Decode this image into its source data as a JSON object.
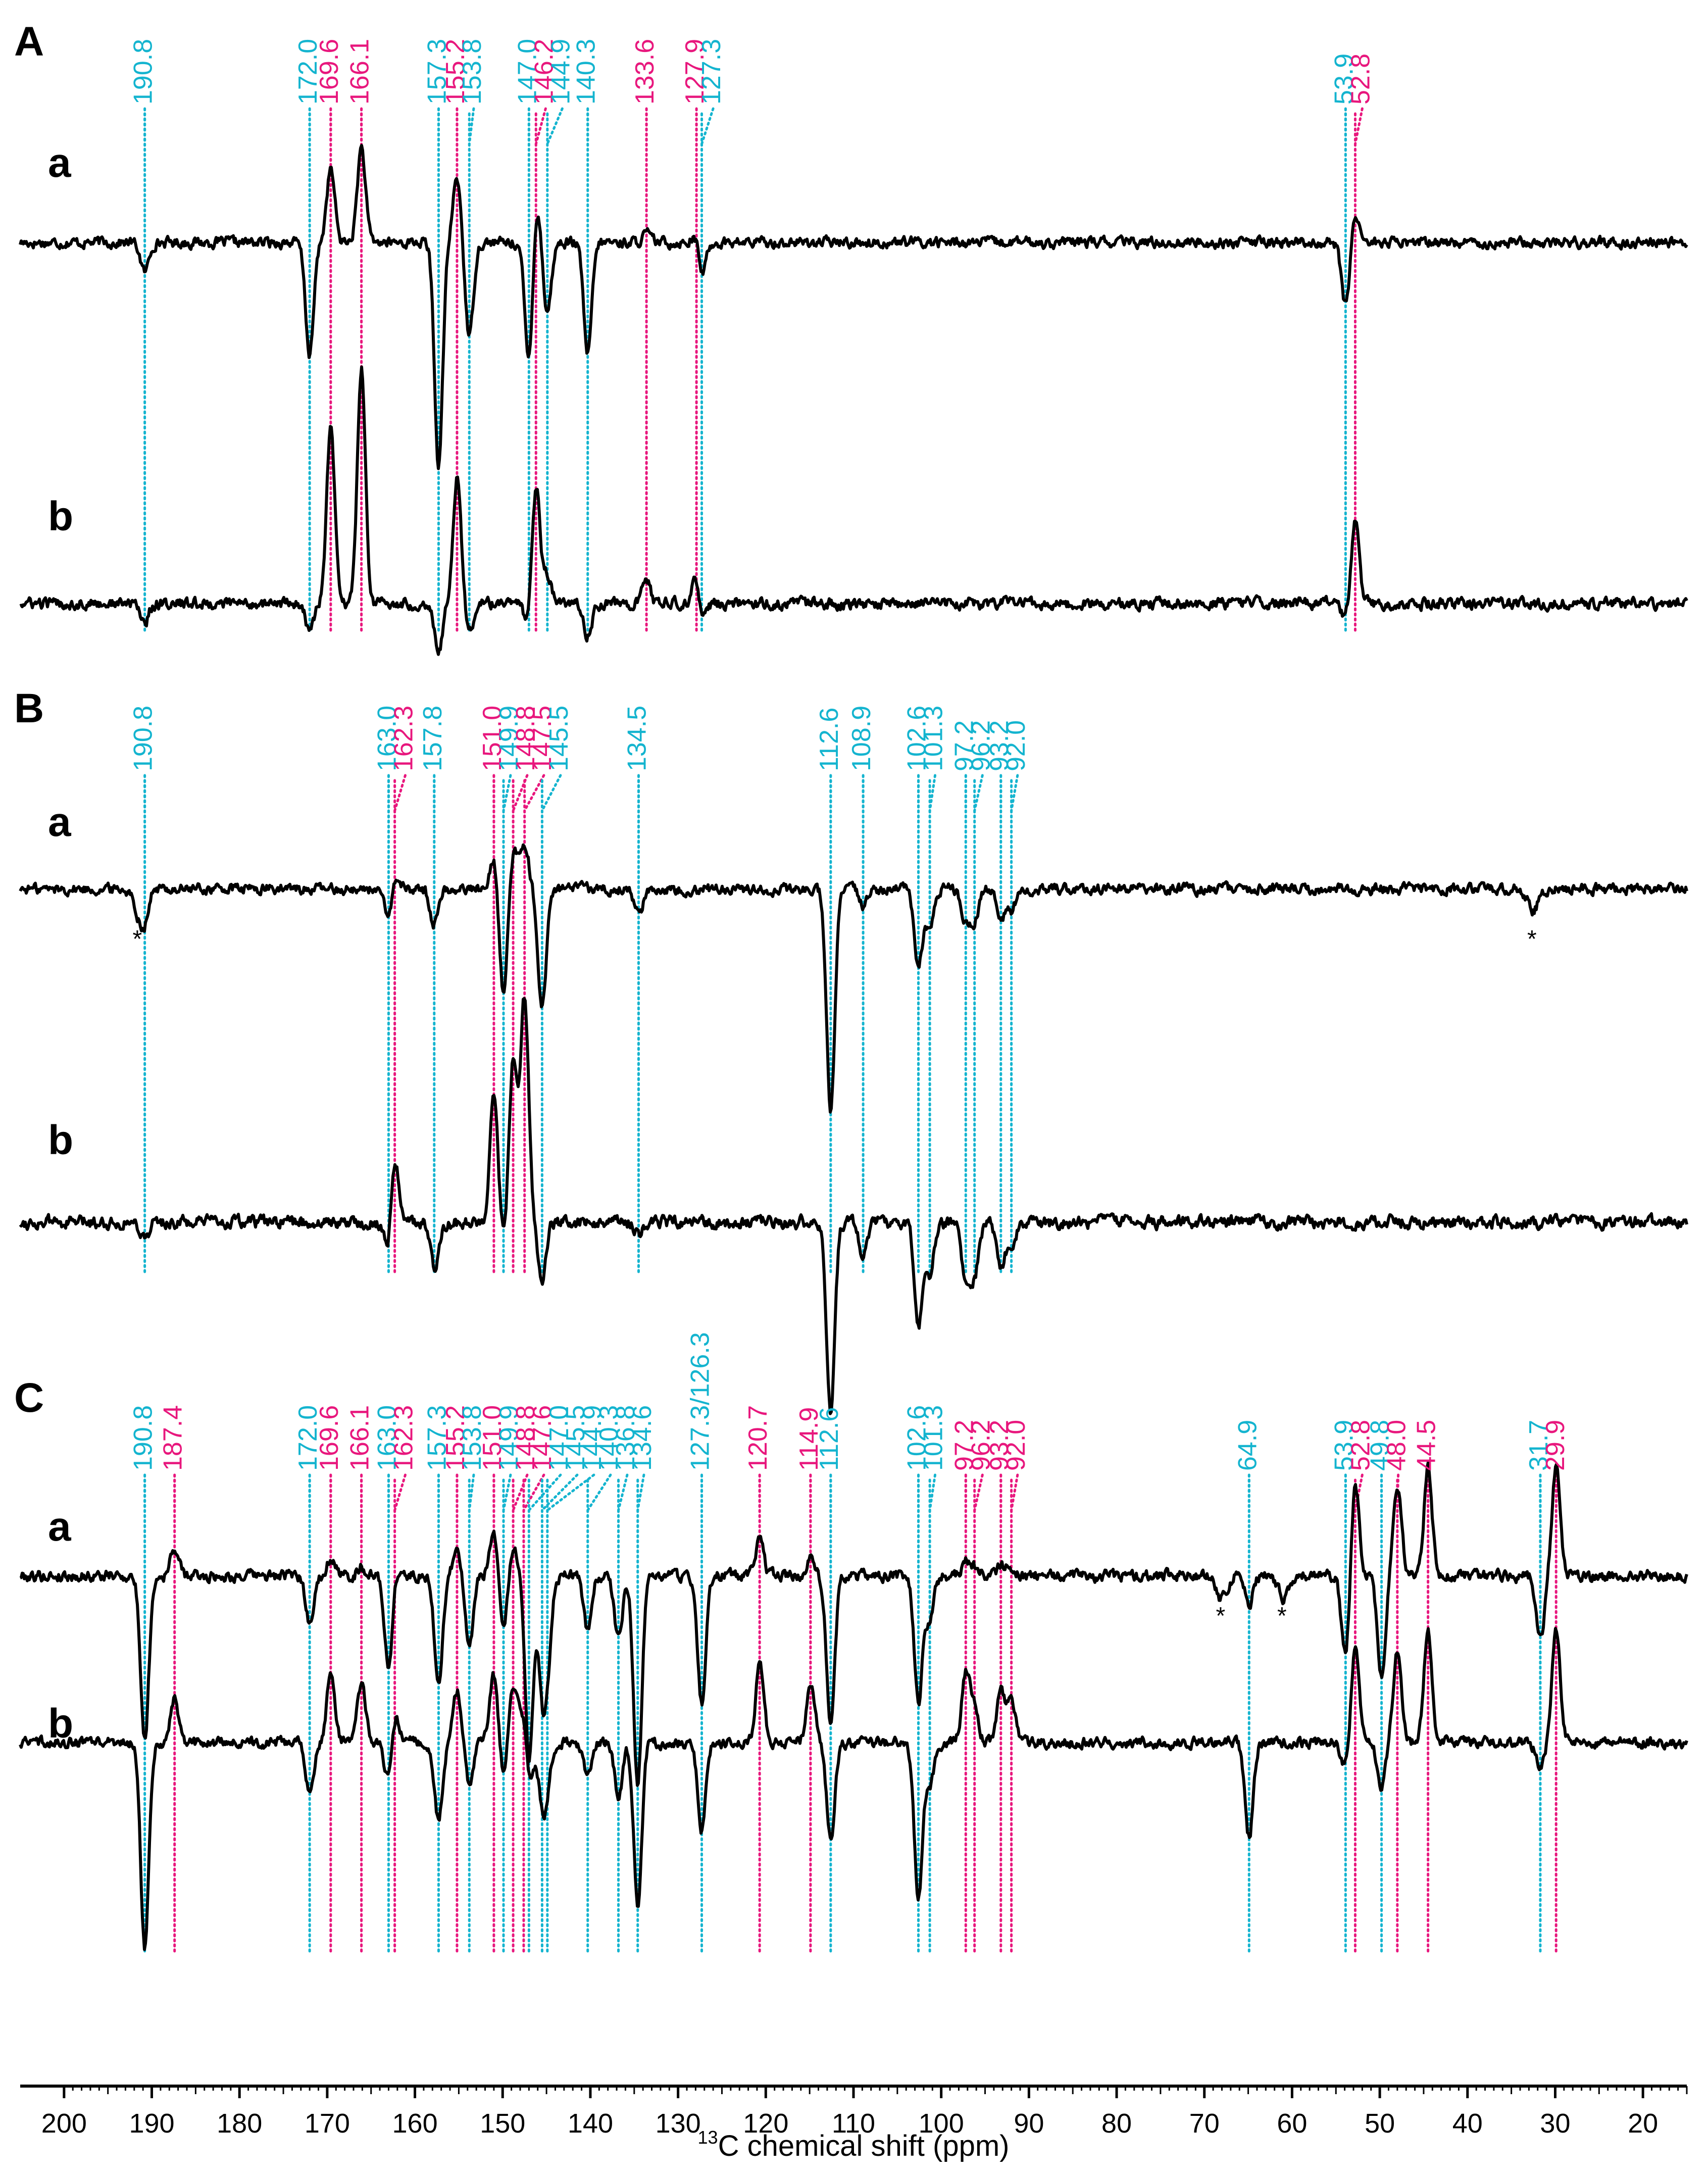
{
  "figure": {
    "panel_labels": [
      "A",
      "B",
      "C"
    ],
    "row_labels": [
      "a",
      "b"
    ],
    "axis_label": "chemical shift (ppm)",
    "axis_label_sup": "13",
    "axis_label_prefix": "C",
    "star": "*"
  },
  "colors": {
    "cyan": "#14b4cf",
    "magenta": "#e8177d",
    "trace": "#000000"
  },
  "chart_data": {
    "type": "line",
    "xlabel": "13C chemical shift (ppm)",
    "xlim": [
      205,
      15
    ],
    "x_reversed": true,
    "xticks": [
      200,
      190,
      180,
      170,
      160,
      150,
      140,
      130,
      120,
      110,
      100,
      90,
      80,
      70,
      60,
      50,
      40,
      30,
      20
    ],
    "panels": [
      {
        "name": "A",
        "peaks": [
          {
            "ppm": 190.8,
            "label": "190.8",
            "color": "cyan",
            "a": -0.35,
            "b": -0.2
          },
          {
            "ppm": 172.0,
            "label": "172.0",
            "color": "cyan",
            "a": -1.3,
            "b": -0.3
          },
          {
            "ppm": 169.6,
            "label": "169.6",
            "color": "magenta",
            "a": 0.85,
            "b": 1.9
          },
          {
            "ppm": 166.1,
            "label": "166.1",
            "color": "magenta",
            "a": 1.1,
            "b": 2.6
          },
          {
            "ppm": 157.3,
            "label": "157.3",
            "color": "cyan",
            "a": -2.6,
            "b": -0.5
          },
          {
            "ppm": 155.2,
            "label": "155.2",
            "color": "magenta",
            "a": 0.75,
            "b": 1.4
          },
          {
            "ppm": 153.8,
            "label": "153.8",
            "color": "cyan",
            "a": -1.1,
            "b": -0.3
          },
          {
            "ppm": 147.0,
            "label": "147.0",
            "color": "cyan",
            "a": -1.45,
            "b": -0.3
          },
          {
            "ppm": 146.2,
            "label": "146.2",
            "color": "magenta",
            "a": 0.55,
            "b": 1.3
          },
          {
            "ppm": 144.9,
            "label": "144.9",
            "color": "cyan",
            "a": -0.8,
            "b": 0.3
          },
          {
            "ppm": 140.3,
            "label": "140.3",
            "color": "cyan",
            "a": -1.3,
            "b": -0.35
          },
          {
            "ppm": 133.6,
            "label": "133.6",
            "color": "magenta",
            "a": 0.1,
            "b": 0.25
          },
          {
            "ppm": 127.9,
            "label": "127.9",
            "color": "magenta",
            "a": 0.15,
            "b": 0.3
          },
          {
            "ppm": 127.3,
            "label": "127.3",
            "color": "cyan",
            "a": -0.4,
            "b": -0.2
          },
          {
            "ppm": 53.9,
            "label": "53.9",
            "color": "cyan",
            "a": -0.75,
            "b": -0.15
          },
          {
            "ppm": 52.8,
            "label": "52.8",
            "color": "magenta",
            "a": 0.35,
            "b": 0.9
          }
        ]
      },
      {
        "name": "B",
        "peaks": [
          {
            "ppm": 190.8,
            "label": "190.8",
            "color": "cyan",
            "a": -0.3,
            "b": -0.15
          },
          {
            "ppm": 163.0,
            "label": "163.0",
            "color": "cyan",
            "a": -0.4,
            "b": -0.35
          },
          {
            "ppm": 162.3,
            "label": "162.3",
            "color": "magenta",
            "a": 0.2,
            "b": 0.7
          },
          {
            "ppm": 157.8,
            "label": "157.8",
            "color": "cyan",
            "a": -0.4,
            "b": -0.45
          },
          {
            "ppm": 151.0,
            "label": "151.0",
            "color": "magenta",
            "a": 0.4,
            "b": 1.3
          },
          {
            "ppm": 149.9,
            "label": "149.9",
            "color": "cyan",
            "a": -1.25,
            "b": -0.2
          },
          {
            "ppm": 148.8,
            "label": "148.8",
            "color": "magenta",
            "a": 0.45,
            "b": 1.6
          },
          {
            "ppm": 147.5,
            "label": "147.5",
            "color": "magenta",
            "a": 0.55,
            "b": 2.2
          },
          {
            "ppm": 145.5,
            "label": "145.5",
            "color": "cyan",
            "a": -1.4,
            "b": -0.55
          },
          {
            "ppm": 134.5,
            "label": "134.5",
            "color": "cyan",
            "a": -0.3,
            "b": -0.1
          },
          {
            "ppm": 112.6,
            "label": "112.6",
            "color": "cyan",
            "a": -2.6,
            "b": -1.9
          },
          {
            "ppm": 108.9,
            "label": "108.9",
            "color": "cyan",
            "a": -0.2,
            "b": -0.3
          },
          {
            "ppm": 102.6,
            "label": "102.6",
            "color": "cyan",
            "a": -0.9,
            "b": -1.0
          },
          {
            "ppm": 101.3,
            "label": "101.3",
            "color": "cyan",
            "a": -0.5,
            "b": -0.5
          },
          {
            "ppm": 97.2,
            "label": "97.2",
            "color": "cyan",
            "a": -0.4,
            "b": -0.6
          },
          {
            "ppm": 96.2,
            "label": "96.2",
            "color": "cyan",
            "a": -0.35,
            "b": -0.5
          },
          {
            "ppm": 93.2,
            "label": "93.2",
            "color": "cyan",
            "a": -0.35,
            "b": -0.4
          },
          {
            "ppm": 92.0,
            "label": "92.0",
            "color": "cyan",
            "a": -0.25,
            "b": -0.3
          }
        ]
      },
      {
        "name": "C",
        "peaks": [
          {
            "ppm": 190.8,
            "label": "190.8",
            "color": "cyan",
            "a": -1.8,
            "b": -2.4
          },
          {
            "ppm": 187.4,
            "label": "187.4",
            "color": "magenta",
            "a": 0.3,
            "b": 0.5
          },
          {
            "ppm": 172.0,
            "label": "172.0",
            "color": "cyan",
            "a": -0.5,
            "b": -0.6
          },
          {
            "ppm": 169.6,
            "label": "169.6",
            "color": "magenta",
            "a": 0.2,
            "b": 0.8
          },
          {
            "ppm": 166.1,
            "label": "166.1",
            "color": "magenta",
            "a": 0.1,
            "b": 0.7
          },
          {
            "ppm": 163.0,
            "label": "163.0",
            "color": "cyan",
            "a": -1.0,
            "b": -0.5
          },
          {
            "ppm": 162.3,
            "label": "162.3",
            "color": "magenta",
            "a": 0.1,
            "b": 0.4
          },
          {
            "ppm": 157.3,
            "label": "157.3",
            "color": "cyan",
            "a": -1.2,
            "b": -0.9
          },
          {
            "ppm": 155.2,
            "label": "155.2",
            "color": "magenta",
            "a": 0.3,
            "b": 0.6
          },
          {
            "ppm": 153.8,
            "label": "153.8",
            "color": "cyan",
            "a": -0.8,
            "b": -0.5
          },
          {
            "ppm": 151.0,
            "label": "151.0",
            "color": "magenta",
            "a": 0.5,
            "b": 0.8
          },
          {
            "ppm": 149.9,
            "label": "149.9",
            "color": "cyan",
            "a": -0.6,
            "b": -0.4
          },
          {
            "ppm": 148.8,
            "label": "148.8",
            "color": "magenta",
            "a": 0.3,
            "b": 0.7
          },
          {
            "ppm": 147.6,
            "label": "147.6",
            "color": "magenta",
            "a": 0.2,
            "b": 0.5
          },
          {
            "ppm": 147.0,
            "label": "147.0",
            "color": "cyan",
            "a": -2.1,
            "b": -0.6
          },
          {
            "ppm": 145.5,
            "label": "145.5",
            "color": "cyan",
            "a": -1.1,
            "b": -0.6
          },
          {
            "ppm": 144.9,
            "label": "144.9",
            "color": "cyan",
            "a": -0.8,
            "b": -0.4
          },
          {
            "ppm": 140.3,
            "label": "140.3",
            "color": "cyan",
            "a": -0.6,
            "b": -0.4
          },
          {
            "ppm": 136.8,
            "label": "136.8",
            "color": "cyan",
            "a": -0.7,
            "b": -0.6
          },
          {
            "ppm": 134.6,
            "label": "134.6",
            "color": "cyan",
            "a": -2.3,
            "b": -1.9
          },
          {
            "ppm": 127.3,
            "label": "127.3/126.3",
            "color": "cyan",
            "a": -1.4,
            "b": -1.0
          },
          {
            "ppm": 120.7,
            "label": "120.7",
            "color": "magenta",
            "a": 0.4,
            "b": 0.9
          },
          {
            "ppm": 114.9,
            "label": "114.9",
            "color": "magenta",
            "a": 0.2,
            "b": 0.7
          },
          {
            "ppm": 112.6,
            "label": "112.6",
            "color": "cyan",
            "a": -1.6,
            "b": -1.1
          },
          {
            "ppm": 102.6,
            "label": "102.6",
            "color": "cyan",
            "a": -1.4,
            "b": -1.8
          },
          {
            "ppm": 101.3,
            "label": "101.3",
            "color": "cyan",
            "a": -0.5,
            "b": -0.5
          },
          {
            "ppm": 97.2,
            "label": "97.2",
            "color": "magenta",
            "a": 0.15,
            "b": 0.8
          },
          {
            "ppm": 96.2,
            "label": "96.2",
            "color": "magenta",
            "a": 0.1,
            "b": 0.4
          },
          {
            "ppm": 93.2,
            "label": "93.2",
            "color": "magenta",
            "a": 0.1,
            "b": 0.6
          },
          {
            "ppm": 92.0,
            "label": "92.0",
            "color": "magenta",
            "a": 0.1,
            "b": 0.5
          },
          {
            "ppm": 64.9,
            "label": "64.9",
            "color": "cyan",
            "a": -0.3,
            "b": -1.1
          },
          {
            "ppm": 53.9,
            "label": "53.9",
            "color": "cyan",
            "a": -0.9,
            "b": -0.3
          },
          {
            "ppm": 52.8,
            "label": "52.8",
            "color": "magenta",
            "a": 1.0,
            "b": 1.1
          },
          {
            "ppm": 49.8,
            "label": "49.8",
            "color": "cyan",
            "a": -1.1,
            "b": -0.5
          },
          {
            "ppm": 48.0,
            "label": "48.0",
            "color": "magenta",
            "a": 1.0,
            "b": 1.1
          },
          {
            "ppm": 44.5,
            "label": "44.5",
            "color": "magenta",
            "a": 1.2,
            "b": 1.3
          },
          {
            "ppm": 31.7,
            "label": "31.7",
            "color": "cyan",
            "a": -0.7,
            "b": -0.3
          },
          {
            "ppm": 29.9,
            "label": "29.9",
            "color": "magenta",
            "a": 1.2,
            "b": 1.3
          }
        ]
      }
    ],
    "spinning_sidebands": {
      "B": [
        191.5,
        32.5
      ],
      "C": [
        68.0,
        61.0
      ]
    }
  }
}
